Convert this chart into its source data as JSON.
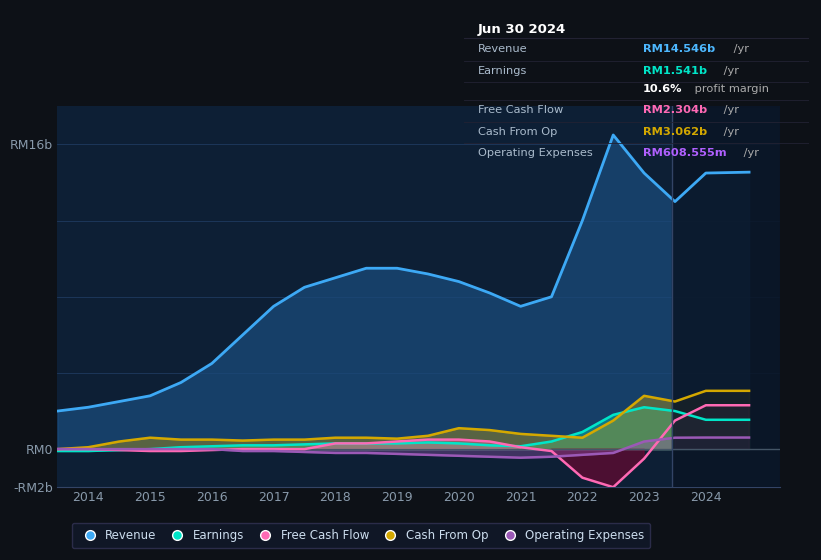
{
  "bg_color": "#0d1117",
  "plot_bg_color": "#0d1f35",
  "ylim": [
    -2,
    18
  ],
  "xlim": [
    2013.5,
    2025.2
  ],
  "yticks": [
    -2,
    0,
    4,
    8,
    12,
    16
  ],
  "ytick_labels": [
    "-RM2b",
    "RM0",
    "",
    "",
    "",
    "RM16b"
  ],
  "xticks": [
    2014,
    2015,
    2016,
    2017,
    2018,
    2019,
    2020,
    2021,
    2022,
    2023,
    2024
  ],
  "grid_color": "#1e3a5f",
  "series": {
    "revenue": {
      "color": "#3da9f5",
      "fill_color": "#1a4a7a",
      "lw": 2.0,
      "x": [
        2013.5,
        2014.0,
        2014.5,
        2015.0,
        2015.5,
        2016.0,
        2016.5,
        2017.0,
        2017.5,
        2018.0,
        2018.5,
        2019.0,
        2019.5,
        2020.0,
        2020.5,
        2021.0,
        2021.5,
        2022.0,
        2022.5,
        2023.0,
        2023.5,
        2024.0,
        2024.7
      ],
      "y": [
        2.0,
        2.2,
        2.5,
        2.8,
        3.5,
        4.5,
        6.0,
        7.5,
        8.5,
        9.0,
        9.5,
        9.5,
        9.2,
        8.8,
        8.2,
        7.5,
        8.0,
        12.0,
        16.5,
        14.5,
        13.0,
        14.5,
        14.546
      ]
    },
    "earnings": {
      "color": "#00e5c8",
      "lw": 1.8,
      "x": [
        2013.5,
        2014.0,
        2014.5,
        2015.0,
        2015.5,
        2016.0,
        2016.5,
        2017.0,
        2017.5,
        2018.0,
        2018.5,
        2019.0,
        2019.5,
        2020.0,
        2020.5,
        2021.0,
        2021.5,
        2022.0,
        2022.5,
        2023.0,
        2023.5,
        2024.0,
        2024.7
      ],
      "y": [
        -0.1,
        -0.1,
        -0.05,
        0.0,
        0.1,
        0.15,
        0.2,
        0.2,
        0.25,
        0.3,
        0.3,
        0.3,
        0.35,
        0.3,
        0.2,
        0.15,
        0.4,
        0.9,
        1.8,
        2.2,
        2.0,
        1.541,
        1.541
      ]
    },
    "free_cash_flow": {
      "color": "#ff69b4",
      "lw": 1.8,
      "x": [
        2013.5,
        2014.0,
        2014.5,
        2015.0,
        2015.5,
        2016.0,
        2016.5,
        2017.0,
        2017.5,
        2018.0,
        2018.5,
        2019.0,
        2019.5,
        2020.0,
        2020.5,
        2021.0,
        2021.5,
        2022.0,
        2022.5,
        2023.0,
        2023.5,
        2024.0,
        2024.7
      ],
      "y": [
        0.0,
        0.0,
        -0.05,
        -0.1,
        -0.1,
        -0.05,
        0.0,
        0.0,
        0.0,
        0.3,
        0.3,
        0.4,
        0.5,
        0.5,
        0.4,
        0.1,
        -0.1,
        -1.5,
        -2.0,
        -0.5,
        1.5,
        2.304,
        2.304
      ]
    },
    "cash_from_op": {
      "color": "#d4a800",
      "lw": 1.8,
      "x": [
        2013.5,
        2014.0,
        2014.5,
        2015.0,
        2015.5,
        2016.0,
        2016.5,
        2017.0,
        2017.5,
        2018.0,
        2018.5,
        2019.0,
        2019.5,
        2020.0,
        2020.5,
        2021.0,
        2021.5,
        2022.0,
        2022.5,
        2023.0,
        2023.5,
        2024.0,
        2024.7
      ],
      "y": [
        0.0,
        0.1,
        0.4,
        0.6,
        0.5,
        0.5,
        0.45,
        0.5,
        0.5,
        0.6,
        0.6,
        0.55,
        0.7,
        1.1,
        1.0,
        0.8,
        0.7,
        0.6,
        1.5,
        2.8,
        2.5,
        3.062,
        3.062
      ]
    },
    "operating_expenses": {
      "color": "#9b59b6",
      "lw": 1.8,
      "x": [
        2013.5,
        2014.0,
        2014.5,
        2015.0,
        2015.5,
        2016.0,
        2016.5,
        2017.0,
        2017.5,
        2018.0,
        2018.5,
        2019.0,
        2019.5,
        2020.0,
        2020.5,
        2021.0,
        2021.5,
        2022.0,
        2022.5,
        2023.0,
        2023.5,
        2024.0,
        2024.7
      ],
      "y": [
        0.0,
        0.0,
        0.0,
        0.0,
        0.0,
        0.0,
        -0.1,
        -0.1,
        -0.15,
        -0.2,
        -0.2,
        -0.25,
        -0.3,
        -0.35,
        -0.4,
        -0.45,
        -0.4,
        -0.3,
        -0.2,
        0.4,
        0.6,
        0.608,
        0.608
      ]
    }
  },
  "vertical_line_x": 2023.45,
  "vertical_line_color": "#334466",
  "infobox": {
    "title": "Jun 30 2024",
    "title_color": "#ffffff",
    "rows": [
      {
        "label": "Revenue",
        "value": "RM14.546b",
        "unit": " /yr",
        "value_color": "#4db8ff",
        "label_color": "#aabbcc"
      },
      {
        "label": "Earnings",
        "value": "RM1.541b",
        "unit": " /yr",
        "value_color": "#00e5c8",
        "label_color": "#aabbcc"
      },
      {
        "label": "",
        "value": "10.6%",
        "unit": " profit margin",
        "value_color": "#ffffff",
        "label_color": "#aabbcc",
        "unit_color": "#aaaaaa"
      },
      {
        "label": "Free Cash Flow",
        "value": "RM2.304b",
        "unit": " /yr",
        "value_color": "#ff69b4",
        "label_color": "#aabbcc"
      },
      {
        "label": "Cash From Op",
        "value": "RM3.062b",
        "unit": " /yr",
        "value_color": "#d4a800",
        "label_color": "#aabbcc"
      },
      {
        "label": "Operating Expenses",
        "value": "RM608.555m",
        "unit": " /yr",
        "value_color": "#b060ff",
        "label_color": "#aabbcc"
      }
    ]
  },
  "legend": [
    {
      "label": "Revenue",
      "color": "#3da9f5"
    },
    {
      "label": "Earnings",
      "color": "#00e5c8"
    },
    {
      "label": "Free Cash Flow",
      "color": "#ff69b4"
    },
    {
      "label": "Cash From Op",
      "color": "#d4a800"
    },
    {
      "label": "Operating Expenses",
      "color": "#9b59b6"
    }
  ]
}
